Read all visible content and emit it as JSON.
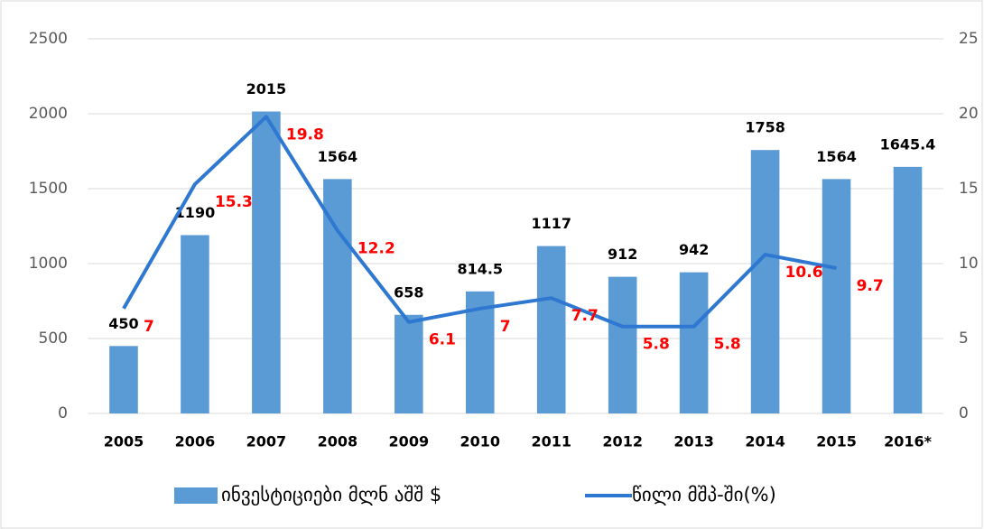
{
  "chart_data": {
    "type": "bar_line",
    "categories": [
      "2005",
      "2006",
      "2007",
      "2008",
      "2009",
      "2010",
      "2011",
      "2012",
      "2013",
      "2014",
      "2015",
      "2016*"
    ],
    "series": [
      {
        "name": "ინვესტიციები მლნ აშშ $",
        "color": "#5b9bd5",
        "type": "bar",
        "values": [
          450,
          1190,
          2015,
          1564,
          658,
          814.5,
          1117,
          912,
          942,
          1758,
          1564,
          1645.4
        ]
      },
      {
        "name": "წილი მშპ-ში(%)",
        "color": "#2e78d2",
        "type": "line",
        "axis": "y2",
        "values": [
          7,
          15.3,
          19.8,
          12.2,
          6.1,
          7,
          7.7,
          5.8,
          5.8,
          10.6,
          9.7,
          null
        ]
      }
    ],
    "ylim": [
      0,
      2500
    ],
    "yticks": [
      0,
      500,
      1000,
      1500,
      2000,
      2500
    ],
    "y2lim": [
      0,
      25
    ],
    "y2ticks": [
      0,
      5,
      10,
      15,
      20,
      25
    ],
    "grid": true,
    "legend": "bottom"
  }
}
